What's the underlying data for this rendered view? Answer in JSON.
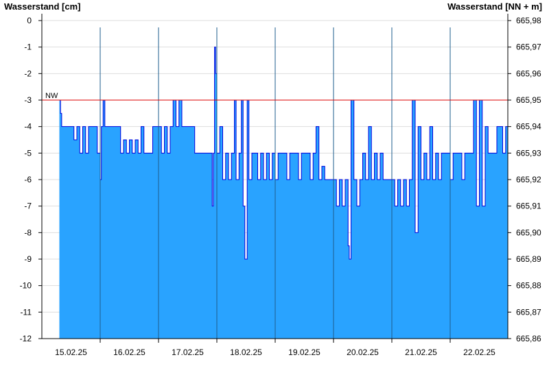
{
  "chart_data": {
    "type": "area",
    "left_axis_title": "Wasserstand [cm]",
    "right_axis_title": "Wasserstand [NN + m]",
    "ylim": [
      -12,
      0
    ],
    "y_ticks": [
      "0",
      "-1",
      "-2",
      "-3",
      "-4",
      "-5",
      "-6",
      "-7",
      "-8",
      "-9",
      "-10",
      "-11",
      "-12"
    ],
    "right_ticks": [
      "665,98",
      "665,97",
      "665,96",
      "665,95",
      "665,94",
      "665,93",
      "665,92",
      "665,91",
      "665,90",
      "665,89",
      "665,88",
      "665,87",
      "665,86"
    ],
    "x_dates": [
      "15.02.25",
      "16.02.25",
      "17.02.25",
      "18.02.25",
      "19.02.25",
      "20.02.25",
      "21.02.25",
      "22.02.25"
    ],
    "x_range_days": [
      -0.7,
      7.3
    ],
    "nw_label": "NW",
    "nw_value": -3,
    "fill_color": "#29a3ff",
    "line_color": "#0000dd",
    "nw_color": "#dd0000",
    "series": [
      {
        "values": [
          [
            -0.7,
            -3
          ],
          [
            -0.68,
            -3.5
          ],
          [
            -0.66,
            -4
          ],
          [
            -0.5,
            -4
          ],
          [
            -0.45,
            -4.5
          ],
          [
            -0.4,
            -4
          ],
          [
            -0.35,
            -5
          ],
          [
            -0.3,
            -4
          ],
          [
            -0.25,
            -5
          ],
          [
            -0.2,
            -4
          ],
          [
            -0.1,
            -4
          ],
          [
            -0.05,
            -5
          ],
          [
            0.0,
            -6
          ],
          [
            0.02,
            -4
          ],
          [
            0.05,
            -3
          ],
          [
            0.08,
            -4
          ],
          [
            0.3,
            -4
          ],
          [
            0.35,
            -5
          ],
          [
            0.4,
            -4.5
          ],
          [
            0.45,
            -5
          ],
          [
            0.5,
            -4.5
          ],
          [
            0.55,
            -5
          ],
          [
            0.6,
            -4.5
          ],
          [
            0.65,
            -5
          ],
          [
            0.7,
            -4
          ],
          [
            0.75,
            -5
          ],
          [
            0.85,
            -5
          ],
          [
            0.9,
            -4
          ],
          [
            1.0,
            -4
          ],
          [
            1.05,
            -5
          ],
          [
            1.1,
            -4
          ],
          [
            1.15,
            -5
          ],
          [
            1.2,
            -4
          ],
          [
            1.25,
            -3
          ],
          [
            1.3,
            -4
          ],
          [
            1.35,
            -3
          ],
          [
            1.4,
            -4
          ],
          [
            1.6,
            -4
          ],
          [
            1.62,
            -5
          ],
          [
            1.9,
            -5
          ],
          [
            1.92,
            -7
          ],
          [
            1.94,
            -5
          ],
          [
            1.96,
            -1
          ],
          [
            1.98,
            -2
          ],
          [
            2.0,
            -5
          ],
          [
            2.05,
            -4
          ],
          [
            2.1,
            -6
          ],
          [
            2.15,
            -5
          ],
          [
            2.2,
            -6
          ],
          [
            2.25,
            -5
          ],
          [
            2.3,
            -3
          ],
          [
            2.33,
            -6
          ],
          [
            2.38,
            -5
          ],
          [
            2.42,
            -3
          ],
          [
            2.45,
            -7
          ],
          [
            2.48,
            -9
          ],
          [
            2.52,
            -3
          ],
          [
            2.55,
            -6
          ],
          [
            2.6,
            -5
          ],
          [
            2.7,
            -6
          ],
          [
            2.75,
            -5
          ],
          [
            2.8,
            -6
          ],
          [
            2.85,
            -5
          ],
          [
            2.9,
            -6
          ],
          [
            2.95,
            -5
          ],
          [
            3.0,
            -6
          ],
          [
            3.05,
            -5
          ],
          [
            3.15,
            -5
          ],
          [
            3.2,
            -6
          ],
          [
            3.25,
            -5
          ],
          [
            3.35,
            -5
          ],
          [
            3.4,
            -6
          ],
          [
            3.45,
            -5
          ],
          [
            3.55,
            -5
          ],
          [
            3.6,
            -6
          ],
          [
            3.65,
            -5
          ],
          [
            3.7,
            -4
          ],
          [
            3.75,
            -6
          ],
          [
            3.8,
            -5.5
          ],
          [
            3.85,
            -6
          ],
          [
            4.0,
            -6
          ],
          [
            4.05,
            -7
          ],
          [
            4.1,
            -6
          ],
          [
            4.15,
            -7
          ],
          [
            4.2,
            -6
          ],
          [
            4.25,
            -8.5
          ],
          [
            4.27,
            -9
          ],
          [
            4.3,
            -3
          ],
          [
            4.35,
            -6
          ],
          [
            4.4,
            -7
          ],
          [
            4.45,
            -6
          ],
          [
            4.5,
            -5
          ],
          [
            4.55,
            -6
          ],
          [
            4.6,
            -4
          ],
          [
            4.65,
            -6
          ],
          [
            4.7,
            -5
          ],
          [
            4.75,
            -6
          ],
          [
            4.8,
            -5
          ],
          [
            4.85,
            -6
          ],
          [
            5.0,
            -6
          ],
          [
            5.05,
            -7
          ],
          [
            5.1,
            -6
          ],
          [
            5.15,
            -7
          ],
          [
            5.2,
            -6
          ],
          [
            5.25,
            -7
          ],
          [
            5.3,
            -6
          ],
          [
            5.35,
            -3
          ],
          [
            5.4,
            -8
          ],
          [
            5.45,
            -4
          ],
          [
            5.5,
            -6
          ],
          [
            5.55,
            -5
          ],
          [
            5.6,
            -6
          ],
          [
            5.65,
            -4
          ],
          [
            5.7,
            -6
          ],
          [
            5.75,
            -5
          ],
          [
            5.8,
            -6
          ],
          [
            5.85,
            -5
          ],
          [
            5.95,
            -5
          ],
          [
            6.0,
            -6
          ],
          [
            6.05,
            -5
          ],
          [
            6.15,
            -5
          ],
          [
            6.2,
            -6
          ],
          [
            6.25,
            -5
          ],
          [
            6.35,
            -5
          ],
          [
            6.4,
            -3
          ],
          [
            6.45,
            -7
          ],
          [
            6.5,
            -3
          ],
          [
            6.55,
            -7
          ],
          [
            6.6,
            -4
          ],
          [
            6.65,
            -5
          ],
          [
            6.75,
            -5
          ],
          [
            6.8,
            -4
          ],
          [
            6.85,
            -4
          ],
          [
            6.9,
            -5
          ],
          [
            6.95,
            -4
          ],
          [
            7.0,
            -4
          ],
          [
            7.05,
            -5
          ],
          [
            7.1,
            -4
          ],
          [
            7.15,
            -5
          ],
          [
            7.2,
            -4
          ],
          [
            7.3,
            -4
          ]
        ]
      }
    ]
  }
}
